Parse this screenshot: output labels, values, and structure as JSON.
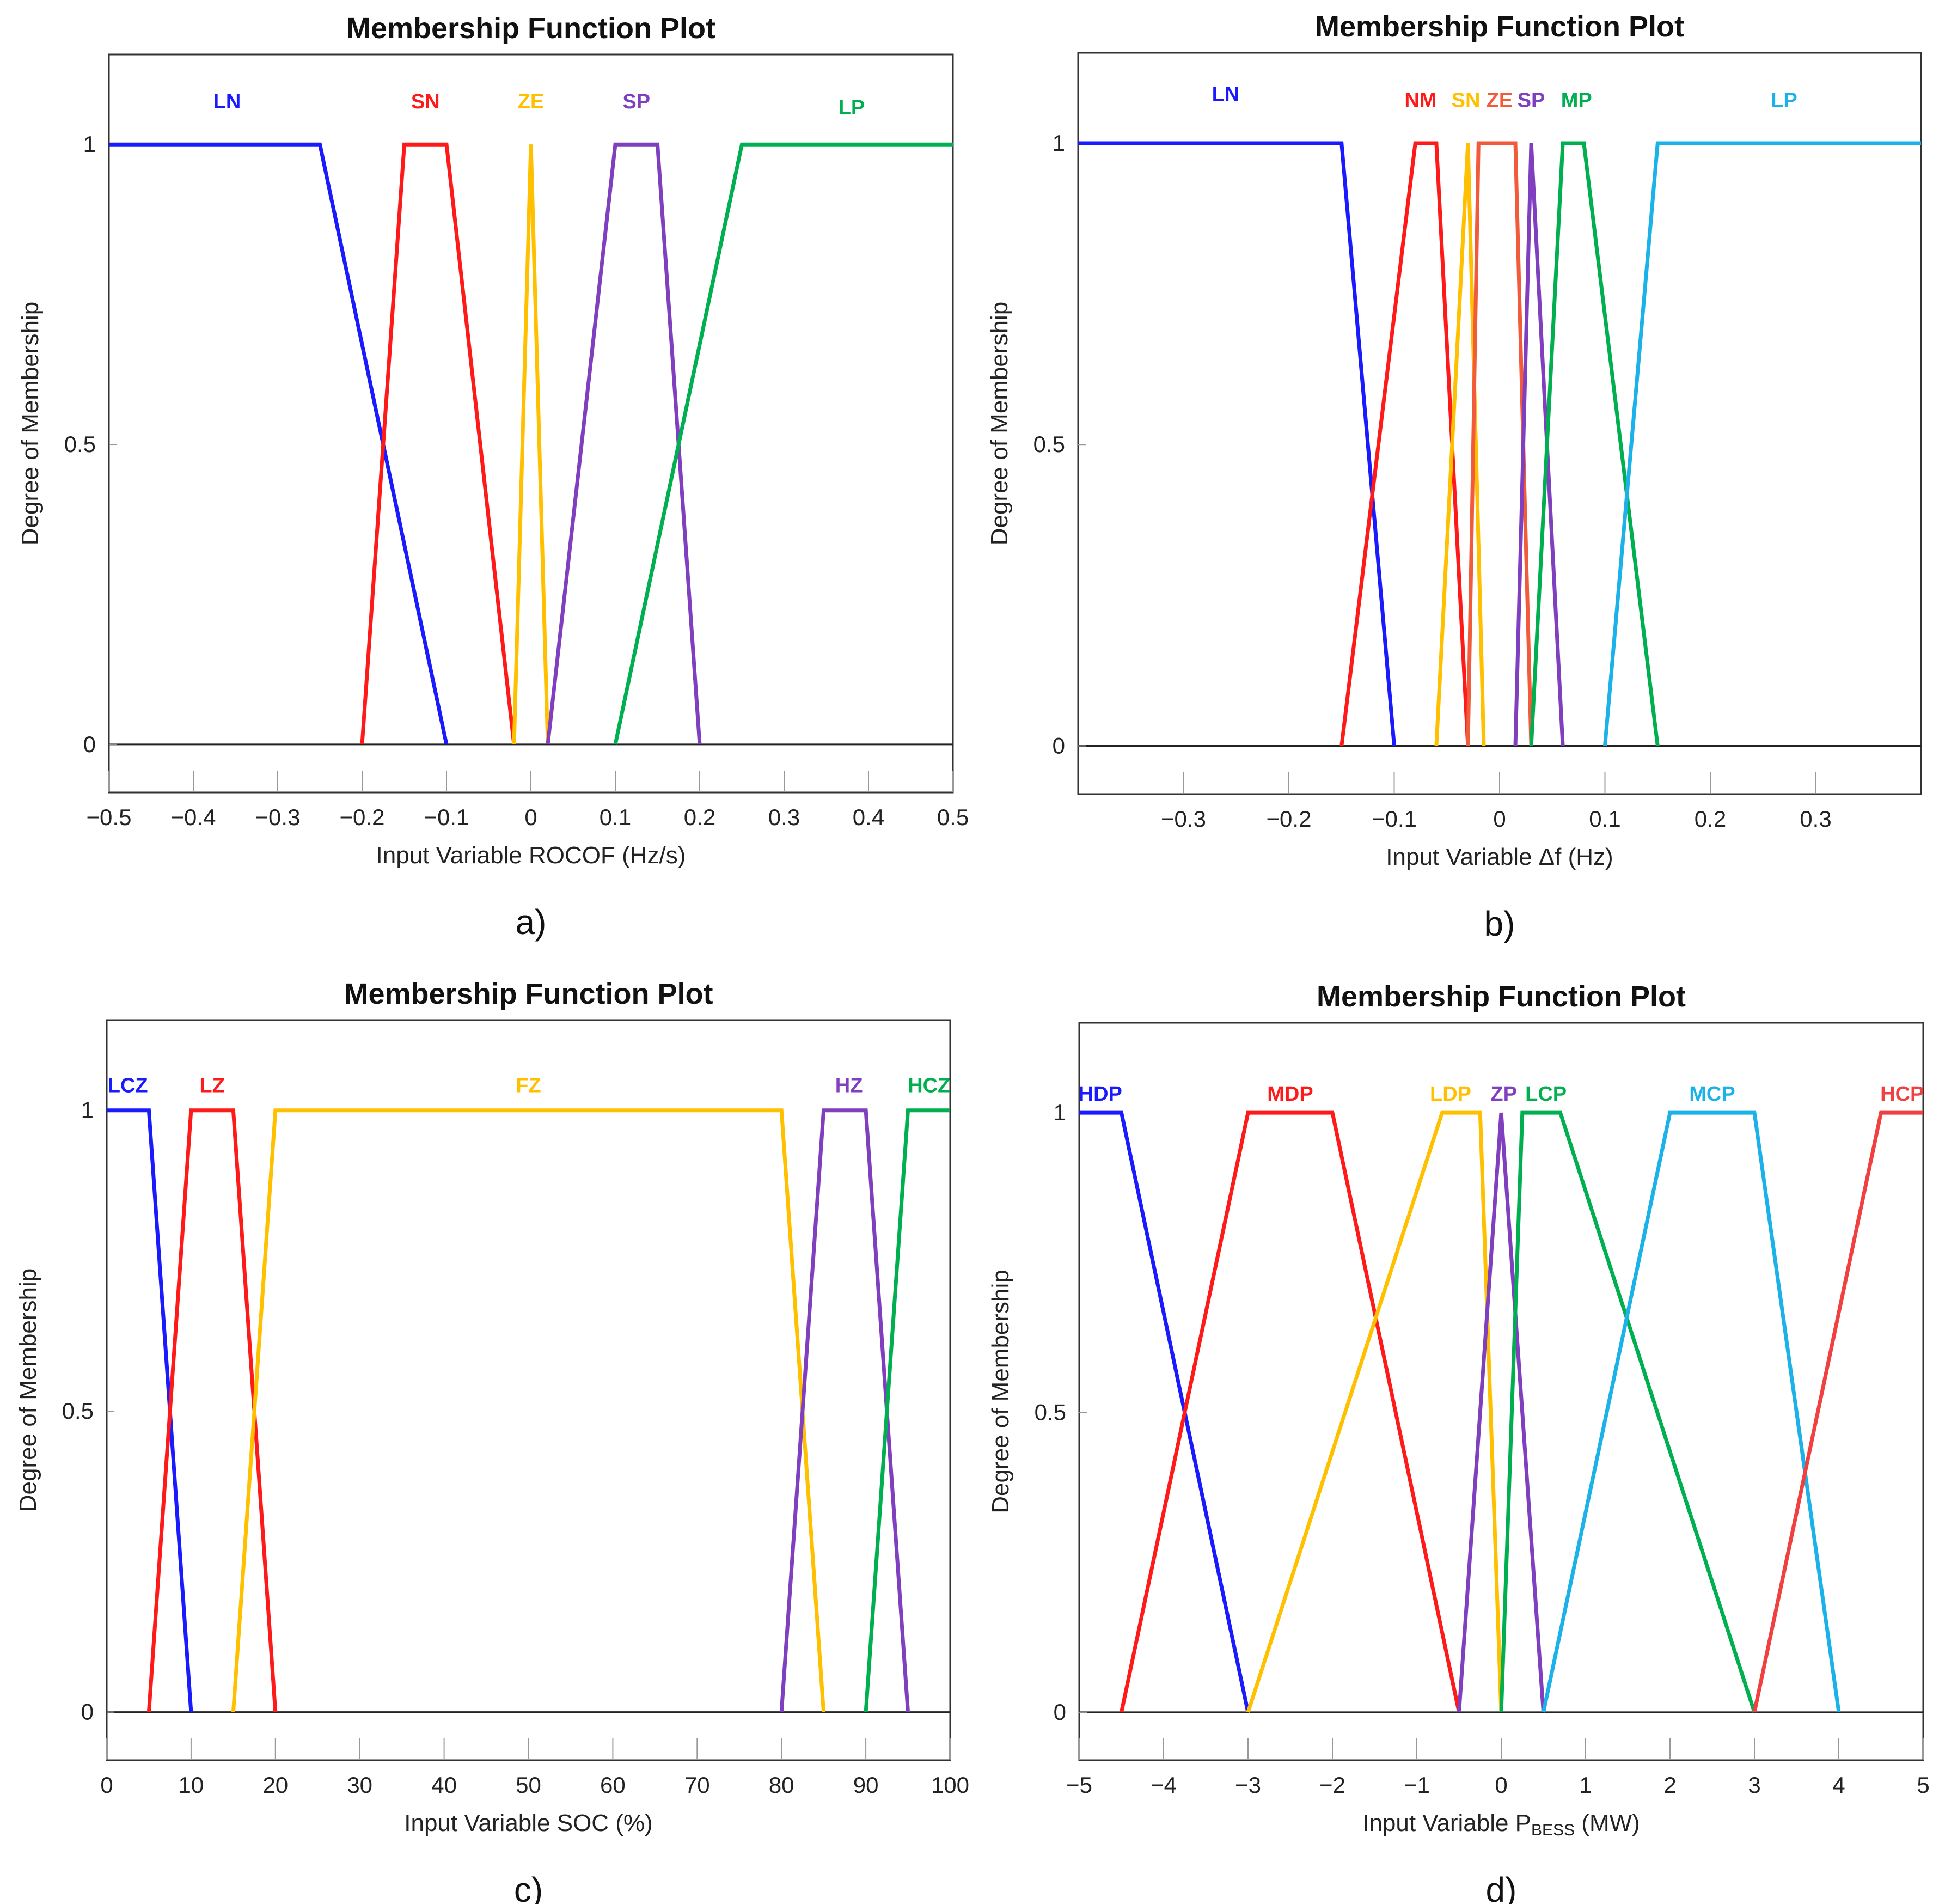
{
  "chart_data": [
    {
      "type": "line",
      "id": "a",
      "title": "Membership Function Plot",
      "xlabel": "Input Variable ROCOF (Hz/s)",
      "ylabel": "Degree of Membership",
      "panel_label": "a)",
      "xlim": [
        -0.5,
        0.5
      ],
      "ylim": [
        -0.08,
        1.15
      ],
      "xticks": [
        -0.5,
        -0.4,
        -0.3,
        -0.2,
        -0.1,
        0,
        0.1,
        0.2,
        0.3,
        0.4,
        0.5
      ],
      "xtick_labels": [
        "−0.5",
        "−0.4",
        "−0.3",
        "−0.2",
        "−0.1",
        "0",
        "0.1",
        "0.2",
        "0.3",
        "0.4",
        "0.5"
      ],
      "yticks": [
        0,
        0.5,
        1
      ],
      "ytick_labels": [
        "0",
        "0.5",
        "1"
      ],
      "series": [
        {
          "name": "LN",
          "color": "#1a1aff",
          "x": [
            -0.5,
            -0.25,
            -0.1
          ],
          "y": [
            1,
            1,
            0
          ],
          "label_x": -0.36,
          "label_y": 1.06
        },
        {
          "name": "SN",
          "color": "#ff1a1a",
          "x": [
            -0.2,
            -0.15,
            -0.1,
            -0.02
          ],
          "y": [
            0,
            1,
            1,
            0
          ],
          "label_x": -0.125,
          "label_y": 1.06
        },
        {
          "name": "ZE",
          "color": "#ffc000",
          "x": [
            -0.02,
            0,
            0.02
          ],
          "y": [
            0,
            1,
            0
          ],
          "label_x": 0.0,
          "label_y": 1.06
        },
        {
          "name": "SP",
          "color": "#7f3fbf",
          "x": [
            0.02,
            0.1,
            0.15,
            0.2
          ],
          "y": [
            0,
            1,
            1,
            0
          ],
          "label_x": 0.125,
          "label_y": 1.06
        },
        {
          "name": "LP",
          "color": "#00b050",
          "x": [
            0.1,
            0.25,
            0.5
          ],
          "y": [
            0,
            1,
            1
          ],
          "label_x": 0.38,
          "label_y": 1.05
        }
      ]
    },
    {
      "type": "line",
      "id": "b",
      "title": "Membership Function Plot",
      "xlabel": "Input Variable Δf (Hz)",
      "ylabel": "Degree of Membership",
      "panel_label": "b)",
      "xlim": [
        -0.4,
        0.4
      ],
      "ylim": [
        -0.08,
        1.15
      ],
      "xticks": [
        -0.3,
        -0.2,
        -0.1,
        0,
        0.1,
        0.2,
        0.3
      ],
      "xtick_labels": [
        "−0.3",
        "−0.2",
        "−0.1",
        "0",
        "0.1",
        "0.2",
        "0.3"
      ],
      "yticks": [
        0,
        0.5,
        1
      ],
      "ytick_labels": [
        "0",
        "0.5",
        "1"
      ],
      "series": [
        {
          "name": "LN",
          "color": "#1a1aff",
          "x": [
            -0.4,
            -0.15,
            -0.1
          ],
          "y": [
            1,
            1,
            0
          ],
          "label_x": -0.26,
          "label_y": 1.07
        },
        {
          "name": "NM",
          "color": "#ff1a1a",
          "x": [
            -0.15,
            -0.08,
            -0.06,
            -0.03
          ],
          "y": [
            0,
            1,
            1,
            0
          ],
          "label_x": -0.075,
          "label_y": 1.06
        },
        {
          "name": "SN",
          "color": "#ffc000",
          "x": [
            -0.06,
            -0.03,
            -0.015
          ],
          "y": [
            0,
            1,
            0
          ],
          "label_x": -0.032,
          "label_y": 1.06
        },
        {
          "name": "ZE",
          "color": "#f15a3a",
          "x": [
            -0.03,
            -0.02,
            0.015,
            0.03
          ],
          "y": [
            0,
            1,
            1,
            0
          ],
          "label_x": 0.0,
          "label_y": 1.06
        },
        {
          "name": "SP",
          "color": "#7f3fbf",
          "x": [
            0.015,
            0.03,
            0.06
          ],
          "y": [
            0,
            1,
            0
          ],
          "label_x": 0.03,
          "label_y": 1.06
        },
        {
          "name": "MP",
          "color": "#00b050",
          "x": [
            0.03,
            0.06,
            0.08,
            0.15
          ],
          "y": [
            0,
            1,
            1,
            0
          ],
          "label_x": 0.073,
          "label_y": 1.06
        },
        {
          "name": "LP",
          "color": "#1ab2e8",
          "x": [
            0.1,
            0.15,
            0.4
          ],
          "y": [
            0,
            1,
            1
          ],
          "label_x": 0.27,
          "label_y": 1.06
        }
      ]
    },
    {
      "type": "line",
      "id": "c",
      "title": "Membership Function Plot",
      "xlabel": "Input Variable SOC (%)",
      "ylabel": "Degree of Membership",
      "panel_label": "c)",
      "xlim": [
        0,
        100
      ],
      "ylim": [
        -0.08,
        1.15
      ],
      "xticks": [
        0,
        10,
        20,
        30,
        40,
        50,
        60,
        70,
        80,
        90,
        100
      ],
      "xtick_labels": [
        "0",
        "10",
        "20",
        "30",
        "40",
        "50",
        "60",
        "70",
        "80",
        "90",
        "100"
      ],
      "yticks": [
        0,
        0.5,
        1
      ],
      "ytick_labels": [
        "0",
        "0.5",
        "1"
      ],
      "series": [
        {
          "name": "LCZ",
          "color": "#1a1aff",
          "x": [
            0,
            5,
            10
          ],
          "y": [
            1,
            1,
            0
          ],
          "label_x": 2.5,
          "label_y": 1.03
        },
        {
          "name": "LZ",
          "color": "#ff1a1a",
          "x": [
            5,
            10,
            15,
            20
          ],
          "y": [
            0,
            1,
            1,
            0
          ],
          "label_x": 12.5,
          "label_y": 1.03
        },
        {
          "name": "FZ",
          "color": "#ffc000",
          "x": [
            15,
            20,
            80,
            85
          ],
          "y": [
            0,
            1,
            1,
            0
          ],
          "label_x": 50,
          "label_y": 1.03
        },
        {
          "name": "HZ",
          "color": "#7f3fbf",
          "x": [
            80,
            85,
            90,
            95
          ],
          "y": [
            0,
            1,
            1,
            0
          ],
          "label_x": 88,
          "label_y": 1.03
        },
        {
          "name": "HCZ",
          "color": "#00b050",
          "x": [
            90,
            95,
            100
          ],
          "y": [
            0,
            1,
            1
          ],
          "label_x": 97.5,
          "label_y": 1.03
        }
      ]
    },
    {
      "type": "line",
      "id": "d",
      "title": "Membership Function Plot",
      "xlabel": "Input Variable P",
      "xlabel_sub": "BESS",
      "xlabel_unit": " (MW)",
      "ylabel": "Degree of Membership",
      "panel_label": "d)",
      "xlim": [
        -5,
        5
      ],
      "ylim": [
        -0.08,
        1.15
      ],
      "xticks": [
        -5,
        -4,
        -3,
        -2,
        -1,
        0,
        1,
        2,
        3,
        4,
        5
      ],
      "xtick_labels": [
        "−5",
        "−4",
        "−3",
        "−2",
        "−1",
        "0",
        "1",
        "2",
        "3",
        "4",
        "5"
      ],
      "yticks": [
        0,
        0.5,
        1
      ],
      "ytick_labels": [
        "0",
        "0.5",
        "1"
      ],
      "series": [
        {
          "name": "HDP",
          "color": "#1a1aff",
          "x": [
            -5,
            -4.5,
            -3
          ],
          "y": [
            1,
            1,
            0
          ],
          "label_x": -4.75,
          "label_y": 1.02
        },
        {
          "name": "MDP",
          "color": "#ff1a1a",
          "x": [
            -4.5,
            -3,
            -2,
            -0.5
          ],
          "y": [
            0,
            1,
            1,
            0
          ],
          "label_x": -2.5,
          "label_y": 1.02
        },
        {
          "name": "LDP",
          "color": "#ffc000",
          "x": [
            -3,
            -0.7,
            -0.25,
            0
          ],
          "y": [
            0,
            1,
            1,
            0
          ],
          "label_x": -0.6,
          "label_y": 1.02
        },
        {
          "name": "ZP",
          "color": "#7f3fbf",
          "x": [
            -0.5,
            0,
            0.5
          ],
          "y": [
            0,
            1,
            0
          ],
          "label_x": 0.03,
          "label_y": 1.02
        },
        {
          "name": "LCP",
          "color": "#00b050",
          "x": [
            0,
            0.25,
            0.7,
            3
          ],
          "y": [
            0,
            1,
            1,
            0
          ],
          "label_x": 0.53,
          "label_y": 1.02
        },
        {
          "name": "MCP",
          "color": "#1ab2e8",
          "x": [
            0.5,
            2,
            3,
            4
          ],
          "y": [
            0,
            1,
            1,
            0
          ],
          "label_x": 2.5,
          "label_y": 1.02
        },
        {
          "name": "HCP",
          "color": "#f04040",
          "x": [
            3,
            4.5,
            5
          ],
          "y": [
            0,
            1,
            1
          ],
          "label_x": 4.75,
          "label_y": 1.02
        }
      ]
    }
  ]
}
